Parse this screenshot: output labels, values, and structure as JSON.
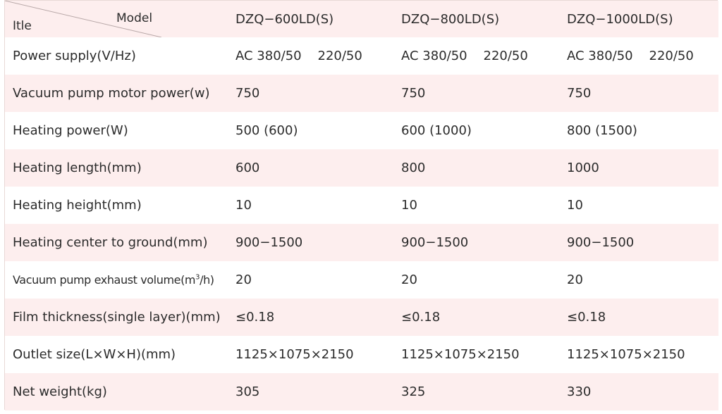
{
  "header": {
    "model_label": "Model",
    "item_label": "Itle",
    "models": [
      "DZQ−600LD(S)",
      "DZQ−800LD(S)",
      "DZQ−1000LD(S)"
    ]
  },
  "rows": [
    {
      "label": "Power supply(V/Hz)",
      "values": [
        "AC 380/50    220/50",
        "AC 380/50    220/50",
        "AC 380/50    220/50"
      ]
    },
    {
      "label": "Vacuum pump motor power(w)",
      "values": [
        "750",
        "750",
        "750"
      ]
    },
    {
      "label": "Heating power(W)",
      "values": [
        "500 (600)",
        "600 (1000)",
        "800 (1500)"
      ]
    },
    {
      "label": "Heating length(mm)",
      "values": [
        "600",
        "800",
        "1000"
      ]
    },
    {
      "label": "Heating height(mm)",
      "values": [
        "10",
        "10",
        "10"
      ]
    },
    {
      "label": "Heating center to ground(mm)",
      "values": [
        "900−1500",
        "900−1500",
        "900−1500"
      ]
    },
    {
      "label": "Vacuum pump exhaust volume(m",
      "label_sup": "3",
      "label_tail": "/h)",
      "values": [
        "20",
        "20",
        "20"
      ]
    },
    {
      "label": "Film thickness(single layer)(mm)",
      "values": [
        "≤0.18",
        "≤0.18",
        "≤0.18"
      ]
    },
    {
      "label": "Outlet size(L×W×H)(mm)",
      "values": [
        "1125×1075×2150",
        "1125×1075×2150",
        "1125×1075×2150"
      ]
    },
    {
      "label": "Net weight(kg)",
      "values": [
        "305",
        "325",
        "330"
      ]
    }
  ]
}
